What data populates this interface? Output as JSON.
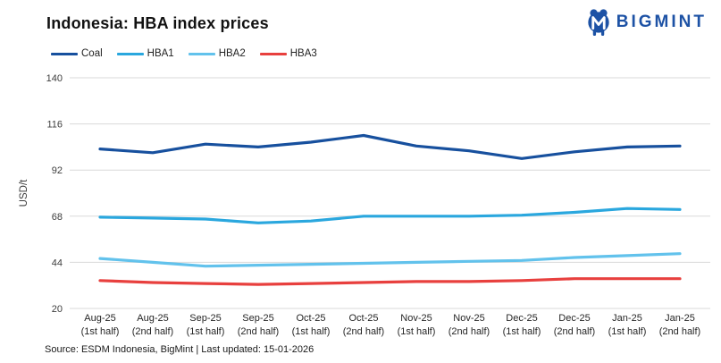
{
  "header": {
    "title": "Indonesia: HBA index prices",
    "brand": "BIGMINT"
  },
  "source_note": "Source: ESDM Indonesia, BigMint | Last updated: 15-01-2026",
  "colors": {
    "brand_blue": "#1d52a5",
    "coal": "#17509e",
    "hba1": "#2aa7de",
    "hba2": "#62c2ec",
    "hba3": "#e8403e",
    "gridline": "#d9d9d9",
    "axis_text": "#3d3d3d",
    "title_text": "#111111"
  },
  "chart_data": {
    "type": "line",
    "title": "Indonesia: HBA index prices",
    "xlabel": "",
    "ylabel": "USD/t",
    "ylim": [
      20,
      140
    ],
    "yticks": [
      20,
      44,
      68,
      92,
      116,
      140
    ],
    "grid": true,
    "legend_position": "top-left",
    "categories": [
      {
        "label": "Aug-25",
        "sub": "(1st half)"
      },
      {
        "label": "Aug-25",
        "sub": "(2nd half)"
      },
      {
        "label": "Sep-25",
        "sub": "(1st half)"
      },
      {
        "label": "Sep-25",
        "sub": "(2nd half)"
      },
      {
        "label": "Oct-25",
        "sub": "(1st half)"
      },
      {
        "label": "Oct-25",
        "sub": "(2nd half)"
      },
      {
        "label": "Nov-25",
        "sub": "(1st half)"
      },
      {
        "label": "Nov-25",
        "sub": "(2nd half)"
      },
      {
        "label": "Dec-25",
        "sub": "(1st half)"
      },
      {
        "label": "Dec-25",
        "sub": "(2nd half)"
      },
      {
        "label": "Jan-25",
        "sub": "(1st half)"
      },
      {
        "label": "Jan-25",
        "sub": "(2nd half)"
      }
    ],
    "series": [
      {
        "name": "Coal",
        "color": "#17509e",
        "values": [
          103,
          101,
          105.5,
          104,
          106.5,
          110,
          104.5,
          102,
          98,
          101.5,
          104,
          104.5
        ]
      },
      {
        "name": "HBA1",
        "color": "#2aa7de",
        "values": [
          67.5,
          67,
          66.5,
          64.5,
          65.5,
          68,
          68,
          68,
          68.5,
          70,
          72,
          71.5
        ]
      },
      {
        "name": "HBA2",
        "color": "#62c2ec",
        "values": [
          46,
          44,
          42,
          42.5,
          43,
          43.5,
          44,
          44.5,
          45,
          46.5,
          47.5,
          48.5
        ]
      },
      {
        "name": "HBA3",
        "color": "#e8403e",
        "values": [
          34.5,
          33.5,
          33,
          32.5,
          33,
          33.5,
          34,
          34,
          34.5,
          35.5,
          35.5,
          35.5
        ]
      }
    ]
  }
}
